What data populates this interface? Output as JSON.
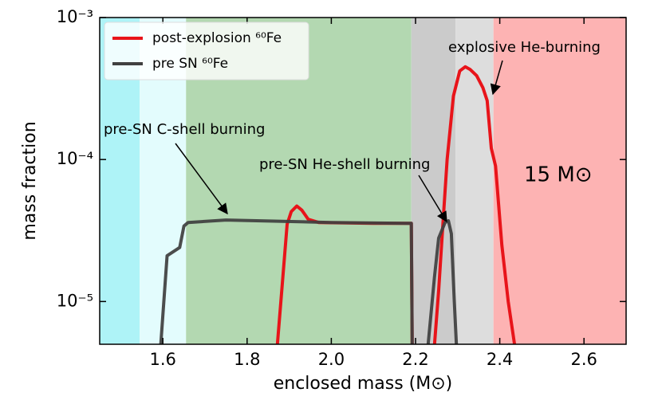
{
  "chart_data": {
    "type": "line",
    "xlabel": "enclosed mass (M⊙)",
    "ylabel": "mass fraction",
    "log_y": true,
    "xlim": [
      1.45,
      2.7
    ],
    "ylim": [
      5e-06,
      0.001
    ],
    "xticks": [
      1.6,
      1.8,
      {
        "value": 2,
        "label": "2.0"
      },
      2.2,
      2.4,
      2.6
    ],
    "yticks": [
      {
        "value": 1e-05,
        "label": "10⁻⁵"
      },
      {
        "value": 0.0001,
        "label": "10⁻⁴"
      },
      {
        "value": 0.001,
        "label": "10⁻³"
      }
    ],
    "legend": "upper left",
    "regions": [
      {
        "x0": 1.45,
        "x1": 1.545,
        "color": "#aef3f7"
      },
      {
        "x0": 1.545,
        "x1": 1.655,
        "color": "#e3fcfd"
      },
      {
        "x0": 1.655,
        "x1": 2.19,
        "color": "#b3d8b1"
      },
      {
        "x0": 2.19,
        "x1": 2.295,
        "color": "#cbcbcb"
      },
      {
        "x0": 2.295,
        "x1": 2.385,
        "color": "#dddddd"
      },
      {
        "x0": 2.385,
        "x1": 2.7,
        "color": "#fdb3b3"
      }
    ],
    "series": [
      {
        "name": "post-explosion ⁶⁰Fe",
        "color": "#e8141a",
        "x": [
          1.872,
          1.885,
          1.895,
          1.905,
          1.918,
          1.93,
          1.945,
          1.97,
          2.1,
          2.19,
          2.192,
          2.22,
          2.245,
          2.255,
          2.265,
          2.275,
          2.29,
          2.305,
          2.318,
          2.33,
          2.345,
          2.36,
          2.37,
          2.38,
          2.39,
          2.405,
          2.42,
          2.435
        ],
        "values": [
          5e-06,
          1.5e-05,
          3.5e-05,
          4.3e-05,
          4.7e-05,
          4.4e-05,
          3.8e-05,
          3.6e-05,
          3.55e-05,
          3.55e-05,
          5e-06,
          null,
          5e-06,
          1.2e-05,
          3.5e-05,
          0.0001,
          0.00028,
          0.00042,
          0.00045,
          0.00043,
          0.00039,
          0.00032,
          0.00026,
          0.00012,
          9e-05,
          2.5e-05,
          1e-05,
          5e-06
        ]
      },
      {
        "name": "pre SN ⁶⁰Fe",
        "color": "#404040",
        "x": [
          1.595,
          1.61,
          1.64,
          1.65,
          1.66,
          1.75,
          2.0,
          2.19,
          2.192,
          2.21,
          2.23,
          2.245,
          2.255,
          2.27,
          2.278,
          2.285,
          2.292,
          2.297
        ],
        "values": [
          5e-06,
          2.1e-05,
          2.4e-05,
          3.4e-05,
          3.6e-05,
          3.75e-05,
          3.6e-05,
          3.55e-05,
          5e-06,
          null,
          5e-06,
          1.5e-05,
          2.8e-05,
          3.6e-05,
          3.7e-05,
          3e-05,
          1e-05,
          5e-06
        ]
      }
    ],
    "annotations": [
      "pre-SN C-shell burning",
      "pre-SN He-shell burning",
      "explosive He-burning",
      "15 M⊙"
    ]
  }
}
